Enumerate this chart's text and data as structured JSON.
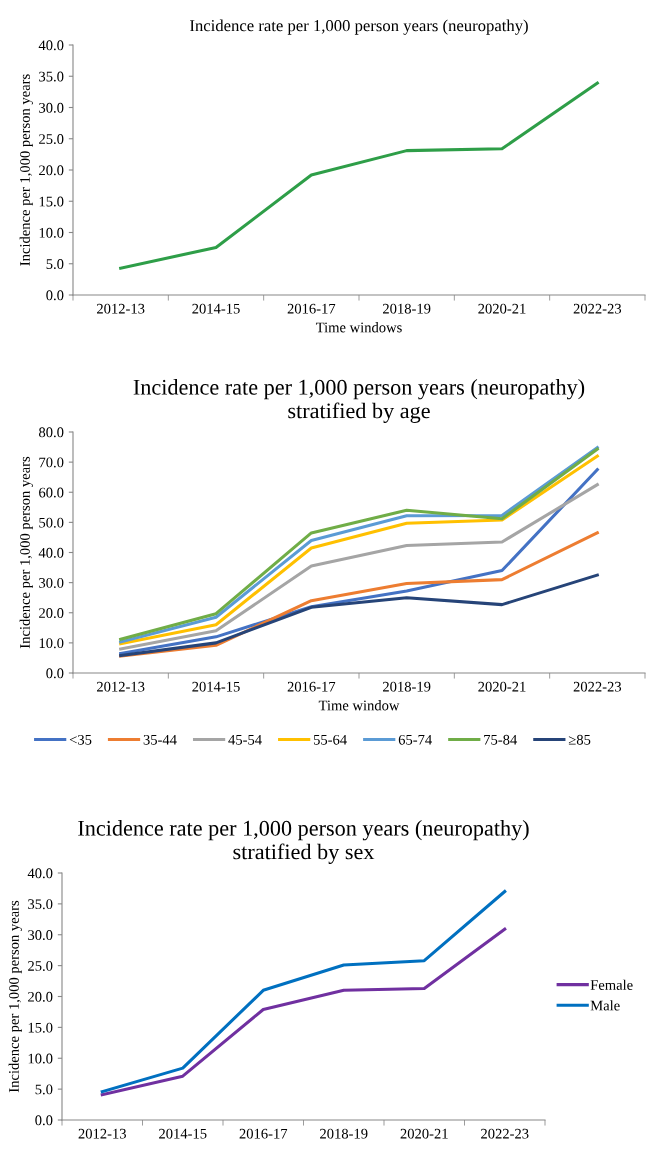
{
  "chart_data": [
    {
      "type": "line",
      "title": "Incidence rate per 1,000 person years (neuropathy)",
      "xlabel": "Time windows",
      "ylabel": "Incidence per 1,000 person years",
      "categories": [
        "2012-13",
        "2014-15",
        "2016-17",
        "2018-19",
        "2020-21",
        "2022-23"
      ],
      "series": [
        {
          "color": "#2e9e48",
          "values": [
            4.3,
            7.6,
            19.2,
            23.1,
            23.4,
            33.9
          ]
        }
      ],
      "ylim": [
        0,
        40
      ],
      "yticks": [
        {
          "value": 0,
          "label": "0.0"
        },
        {
          "value": 5,
          "label": "5.0"
        },
        {
          "value": 10,
          "label": "10.0"
        },
        {
          "value": 15,
          "label": "15.0"
        },
        {
          "value": 20,
          "label": "20.0"
        },
        {
          "value": 25,
          "label": "25.0"
        },
        {
          "value": 30,
          "label": "30.0"
        },
        {
          "value": 35,
          "label": "35.0"
        },
        {
          "value": 40,
          "label": "40.0"
        }
      ],
      "grid": false,
      "legend": false
    },
    {
      "type": "line",
      "title": "Incidence rate per 1,000 person years (neuropathy)\nstratified by age",
      "xlabel": "Time window",
      "ylabel": "Incidence per 1,000 person years",
      "categories": [
        "2012-13",
        "2014-15",
        "2016-17",
        "2018-19",
        "2020-21",
        "2022-23"
      ],
      "series": [
        {
          "name": "<35",
          "color": "#4472c4",
          "values": [
            6.5,
            12.0,
            22.0,
            27.2,
            34.0,
            67.5
          ]
        },
        {
          "name": "35-44",
          "color": "#ed7d31",
          "values": [
            5.6,
            9.2,
            24.0,
            29.7,
            31.0,
            46.5
          ]
        },
        {
          "name": "45-54",
          "color": "#a5a5a5",
          "values": [
            8.0,
            14.0,
            35.5,
            42.3,
            43.5,
            62.5
          ]
        },
        {
          "name": "55-64",
          "color": "#ffc000",
          "values": [
            9.7,
            16.0,
            41.5,
            49.7,
            50.8,
            72.0
          ]
        },
        {
          "name": "65-74",
          "color": "#5b9bd5",
          "values": [
            10.3,
            18.5,
            44.0,
            52.2,
            52.3,
            74.8
          ]
        },
        {
          "name": "75-84",
          "color": "#70ad47",
          "values": [
            11.2,
            19.7,
            46.5,
            54.0,
            51.2,
            74.3
          ]
        },
        {
          "name": "≥85",
          "color": "#264478",
          "values": [
            5.8,
            10.0,
            21.8,
            25.0,
            22.7,
            32.5
          ]
        }
      ],
      "ylim": [
        0,
        80
      ],
      "yticks": [
        {
          "value": 0,
          "label": "0.0"
        },
        {
          "value": 10,
          "label": "10.0"
        },
        {
          "value": 20,
          "label": "20.0"
        },
        {
          "value": 30,
          "label": "30.0"
        },
        {
          "value": 40,
          "label": "40.0"
        },
        {
          "value": 50,
          "label": "50.0"
        },
        {
          "value": 60,
          "label": "60.0"
        },
        {
          "value": 70,
          "label": "70.0"
        },
        {
          "value": 80,
          "label": "80.0"
        }
      ],
      "grid": false,
      "legend": "bottom"
    },
    {
      "type": "line",
      "title": "Incidence rate per 1,000 person years (neuropathy)\nstratified by sex",
      "ylabel": "Incidence per 1,000 person years",
      "categories": [
        "2012-13",
        "2014-15",
        "2016-17",
        "2018-19",
        "2020-21",
        "2022-23"
      ],
      "series": [
        {
          "name": "Female",
          "color": "#7030a0",
          "values": [
            4.1,
            7.1,
            17.9,
            21.0,
            21.3,
            30.9
          ]
        },
        {
          "name": "Male",
          "color": "#0070c0",
          "values": [
            4.6,
            8.4,
            21.0,
            25.1,
            25.8,
            37.0
          ]
        }
      ],
      "ylim": [
        0,
        40
      ],
      "yticks": [
        {
          "value": 0,
          "label": "0.0"
        },
        {
          "value": 5,
          "label": "5.0"
        },
        {
          "value": 10,
          "label": "10.0"
        },
        {
          "value": 15,
          "label": "15.0"
        },
        {
          "value": 20,
          "label": "20.0"
        },
        {
          "value": 25,
          "label": "25.0"
        },
        {
          "value": 30,
          "label": "30.0"
        },
        {
          "value": 35,
          "label": "35.0"
        },
        {
          "value": 40,
          "label": "40.0"
        }
      ],
      "grid": false,
      "legend": "right"
    }
  ]
}
